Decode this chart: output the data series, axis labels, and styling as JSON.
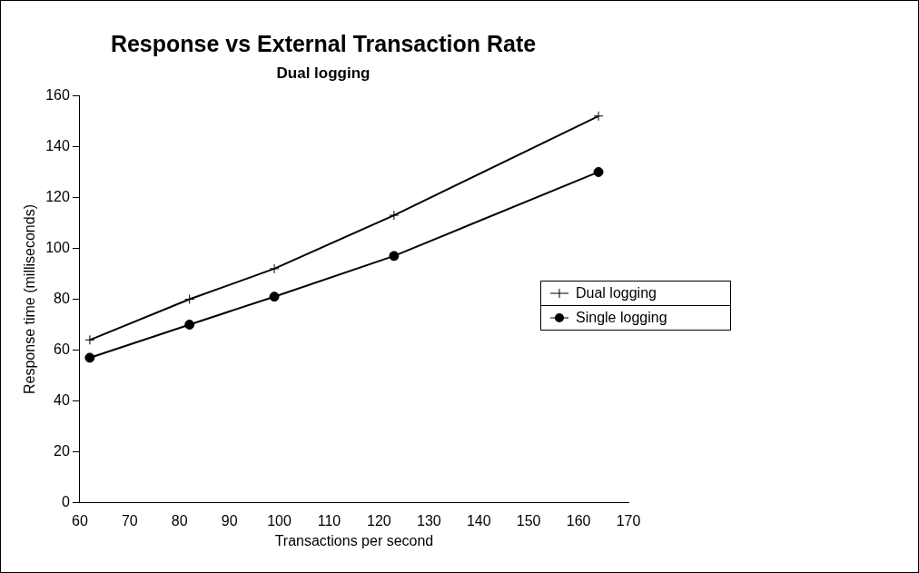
{
  "chart_data": {
    "type": "line",
    "title": "Response vs External Transaction Rate",
    "subtitle": "Dual logging",
    "xlabel": "Transactions per second",
    "ylabel": "Response time (milliseconds)",
    "x": [
      62,
      82,
      99,
      123,
      164
    ],
    "series": [
      {
        "name": "Dual logging",
        "color": "#000000",
        "marker": "cross",
        "values": [
          64,
          80,
          92,
          113,
          152
        ]
      },
      {
        "name": "Single logging",
        "color": "#000000",
        "marker": "circle",
        "values": [
          57,
          70,
          81,
          97,
          130
        ]
      }
    ],
    "xlim": [
      60,
      170
    ],
    "xticks": [
      60,
      70,
      80,
      90,
      100,
      110,
      120,
      130,
      140,
      150,
      160,
      170
    ],
    "ylim": [
      0,
      160
    ],
    "yticks": [
      0,
      20,
      40,
      60,
      80,
      100,
      120,
      140,
      160
    ],
    "grid": false,
    "legend": "right"
  }
}
